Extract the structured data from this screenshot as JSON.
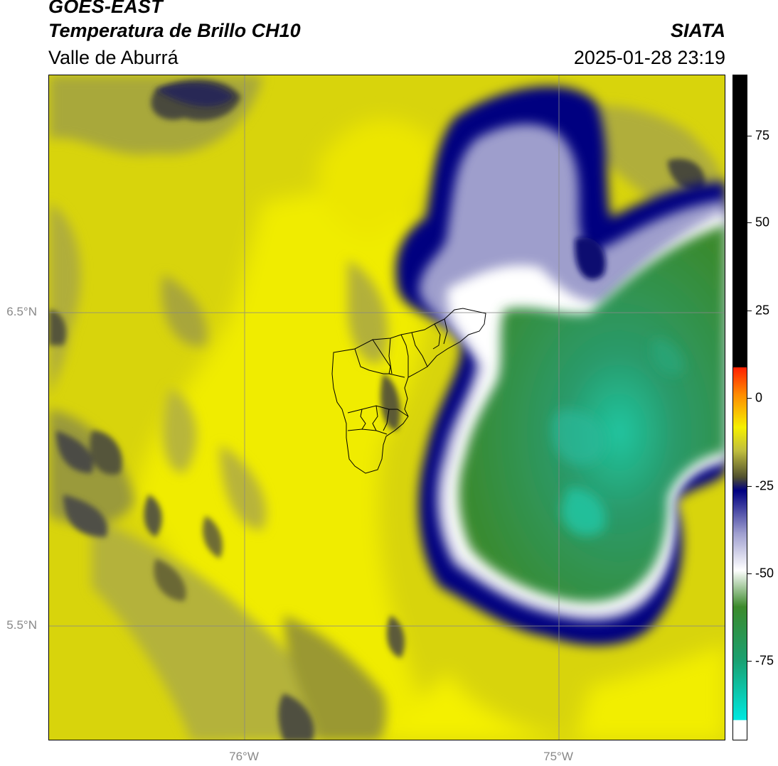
{
  "header": {
    "satellite": "GOES-EAST",
    "product": "Temperatura de Brillo CH10",
    "organization": "SIATA",
    "region": "Valle de Aburrá",
    "datetime": "2025-01-28 23:19"
  },
  "map": {
    "lat_labels": [
      {
        "id": "lat-6-5",
        "label": "6.5°N",
        "lat": 6.5
      },
      {
        "id": "lat-5-5",
        "label": "5.5°N",
        "lat": 5.5
      }
    ],
    "lon_labels": [
      {
        "id": "lon-76",
        "label": "76°W",
        "lon": -76
      },
      {
        "id": "lon-75",
        "label": "75°W",
        "lon": -75
      }
    ],
    "extent": {
      "lon_min": -76.62,
      "lon_max": -74.53,
      "lat_min": 5.15,
      "lat_max": 7.25
    }
  },
  "colorbar": {
    "ticks": [
      {
        "id": "tick-75",
        "label": "75",
        "value": 75
      },
      {
        "id": "tick-50",
        "label": "50",
        "value": 50
      },
      {
        "id": "tick-25",
        "label": "25",
        "value": 25
      },
      {
        "id": "tick-0",
        "label": "0",
        "value": 0
      },
      {
        "id": "tick-m25",
        "label": "-25",
        "value": -25
      },
      {
        "id": "tick-m50",
        "label": "-50",
        "value": -50
      },
      {
        "id": "tick-m75",
        "label": "-75",
        "value": -75
      }
    ],
    "range": [
      -97,
      92
    ],
    "colors": {
      "black": "#000000",
      "red": "#ff2000",
      "orange": "#ff9000",
      "yellow": "#f5f000",
      "olive": "#b5b540",
      "dark_olive": "#50502e",
      "navy": "#000080",
      "lavender": "#a0a0d0",
      "white": "#ffffff",
      "green": "#3c8a2c",
      "teal": "#1aa87a",
      "cyan": "#00e8e0"
    }
  }
}
